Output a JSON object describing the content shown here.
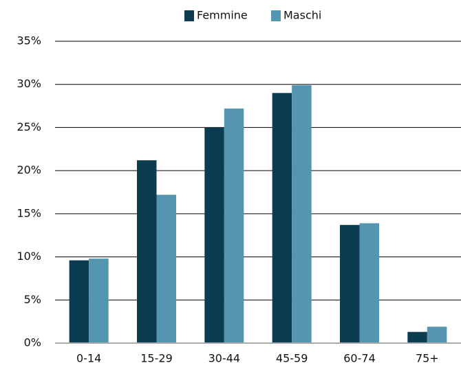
{
  "chart_data": {
    "type": "bar",
    "categories": [
      "0-14",
      "15-29",
      "30-44",
      "45-59",
      "60-74",
      "75+"
    ],
    "series": [
      {
        "name": "Femmine",
        "color": "#0b3c4f",
        "values": [
          9.6,
          21.2,
          25.0,
          29.0,
          13.7,
          1.3
        ]
      },
      {
        "name": "Maschi",
        "color": "#5496b0",
        "values": [
          9.8,
          17.2,
          27.2,
          29.9,
          13.9,
          1.9
        ]
      }
    ],
    "ylim": [
      0,
      35
    ],
    "yticks": [
      {
        "value": 0,
        "label": "0%"
      },
      {
        "value": 5,
        "label": "5%"
      },
      {
        "value": 10,
        "label": "10%"
      },
      {
        "value": 15,
        "label": "15%"
      },
      {
        "value": 20,
        "label": "20%"
      },
      {
        "value": 25,
        "label": "25%"
      },
      {
        "value": 30,
        "label": "30%"
      },
      {
        "value": 35,
        "label": "35%"
      }
    ],
    "grid": true,
    "legend": "top"
  }
}
